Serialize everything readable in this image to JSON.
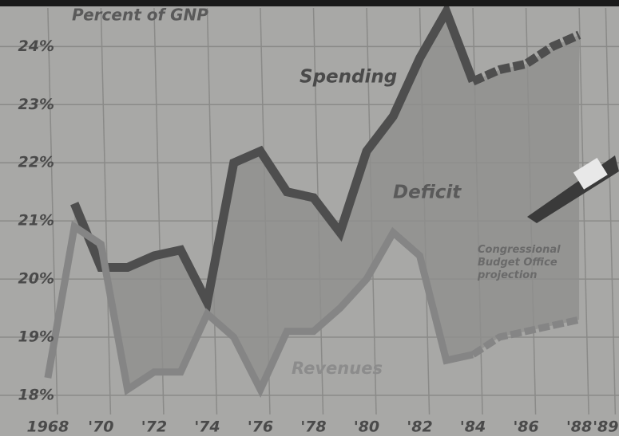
{
  "chart_data": {
    "type": "line",
    "y_label": "Percent of GNP",
    "x": [
      1968,
      1969,
      1970,
      1971,
      1972,
      1973,
      1974,
      1975,
      1976,
      1977,
      1978,
      1979,
      1980,
      1981,
      1982,
      1983,
      1984,
      1985,
      1986,
      1987,
      1988
    ],
    "series": [
      {
        "name": "Spending",
        "color": "#4e4e4e",
        "values": [
          null,
          21.3,
          20.2,
          20.2,
          20.4,
          20.5,
          19.6,
          22.0,
          22.2,
          21.5,
          21.4,
          20.8,
          22.2,
          22.8,
          23.8,
          24.6,
          23.4,
          null,
          null,
          null,
          null
        ],
        "projected": [
          null,
          null,
          null,
          null,
          null,
          null,
          null,
          null,
          null,
          null,
          null,
          null,
          null,
          null,
          null,
          null,
          23.4,
          23.6,
          23.7,
          24.0,
          24.2
        ]
      },
      {
        "name": "Revenues",
        "color": "#858585",
        "values": [
          18.3,
          20.9,
          20.6,
          18.1,
          18.4,
          18.4,
          19.4,
          19.0,
          18.1,
          19.1,
          19.1,
          19.5,
          20.0,
          20.8,
          20.4,
          18.6,
          18.7,
          null,
          null,
          null,
          null
        ],
        "projected": [
          null,
          null,
          null,
          null,
          null,
          null,
          null,
          null,
          null,
          null,
          null,
          null,
          null,
          null,
          null,
          null,
          18.7,
          19.0,
          19.1,
          19.2,
          19.3
        ]
      }
    ],
    "annotations": [
      "Deficit",
      "Congressional Budget Office projection"
    ],
    "xlim": [
      1966.5,
      1989.5
    ],
    "xticks": [
      {
        "value": 1968,
        "label": "1968"
      },
      {
        "value": 1970,
        "label": "'70"
      },
      {
        "value": 1972,
        "label": "'72"
      },
      {
        "value": 1974,
        "label": "'74"
      },
      {
        "value": 1976,
        "label": "'76"
      },
      {
        "value": 1978,
        "label": "'78"
      },
      {
        "value": 1980,
        "label": "'80"
      },
      {
        "value": 1982,
        "label": "'82"
      },
      {
        "value": 1984,
        "label": "'84"
      },
      {
        "value": 1986,
        "label": "'86"
      },
      {
        "value": 1988,
        "label": "'88"
      },
      {
        "value": 1989,
        "label": "'89"
      }
    ],
    "ylim": [
      17.3,
      24.8
    ],
    "yticks": [
      {
        "value": 18,
        "label": "18%"
      },
      {
        "value": 19,
        "label": "19%"
      },
      {
        "value": 20,
        "label": "20%"
      },
      {
        "value": 21,
        "label": "21%"
      },
      {
        "value": 22,
        "label": "22%"
      },
      {
        "value": 23,
        "label": "23%"
      },
      {
        "value": 24,
        "label": "24%"
      }
    ],
    "grid": true
  }
}
